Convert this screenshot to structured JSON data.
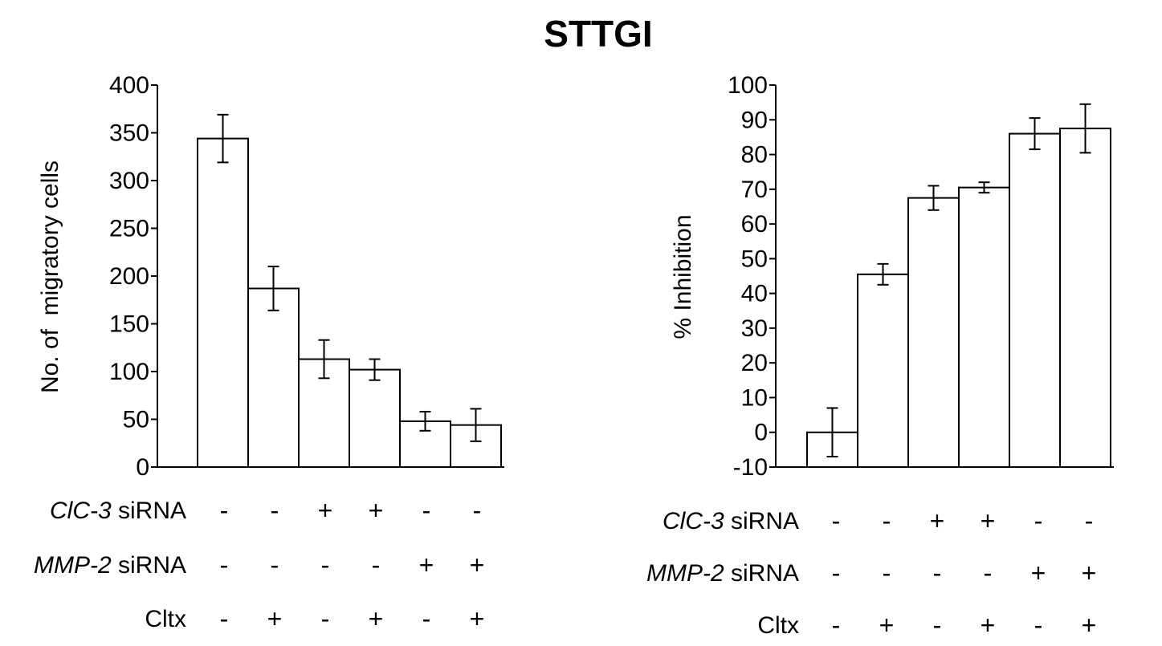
{
  "figure_title": "STTGI",
  "chart_data": [
    {
      "type": "bar",
      "title": "",
      "xlabel": "",
      "ylabel": "No. of  migratory cells",
      "ylim": [
        0,
        400
      ],
      "yticks": [
        0,
        50,
        100,
        150,
        200,
        250,
        300,
        350,
        400
      ],
      "grid": false,
      "values": [
        344,
        187,
        113,
        102,
        48,
        44
      ],
      "errors": [
        25,
        23,
        20,
        11,
        10,
        17
      ],
      "conditions": [
        {
          "label_italic": "ClC-3",
          "label_rest": " siRNA",
          "signs": [
            "-",
            "-",
            "+",
            "+",
            "-",
            "-"
          ]
        },
        {
          "label_italic": "MMP-2",
          "label_rest": " siRNA",
          "signs": [
            "-",
            "-",
            "-",
            "-",
            "+",
            "+"
          ]
        },
        {
          "label_italic": "",
          "label_rest": "Cltx",
          "signs": [
            "-",
            "+",
            "-",
            "+",
            "-",
            "+"
          ]
        }
      ]
    },
    {
      "type": "bar",
      "title": "",
      "xlabel": "",
      "ylabel": "% Inhibition",
      "ylim": [
        -10,
        100
      ],
      "yticks": [
        -10,
        0,
        10,
        20,
        30,
        40,
        50,
        60,
        70,
        80,
        90,
        100
      ],
      "grid": false,
      "values": [
        0,
        45.5,
        67.5,
        70.5,
        86,
        87.5
      ],
      "errors": [
        7,
        3,
        3.5,
        1.5,
        4.5,
        7
      ],
      "conditions": [
        {
          "label_italic": "ClC-3",
          "label_rest": " siRNA",
          "signs": [
            "-",
            "-",
            "+",
            "+",
            "-",
            "-"
          ]
        },
        {
          "label_italic": "MMP-2",
          "label_rest": " siRNA",
          "signs": [
            "-",
            "-",
            "-",
            "-",
            "+",
            "+"
          ]
        },
        {
          "label_italic": "",
          "label_rest": "Cltx",
          "signs": [
            "-",
            "+",
            "-",
            "+",
            "-",
            "+"
          ]
        }
      ]
    }
  ]
}
